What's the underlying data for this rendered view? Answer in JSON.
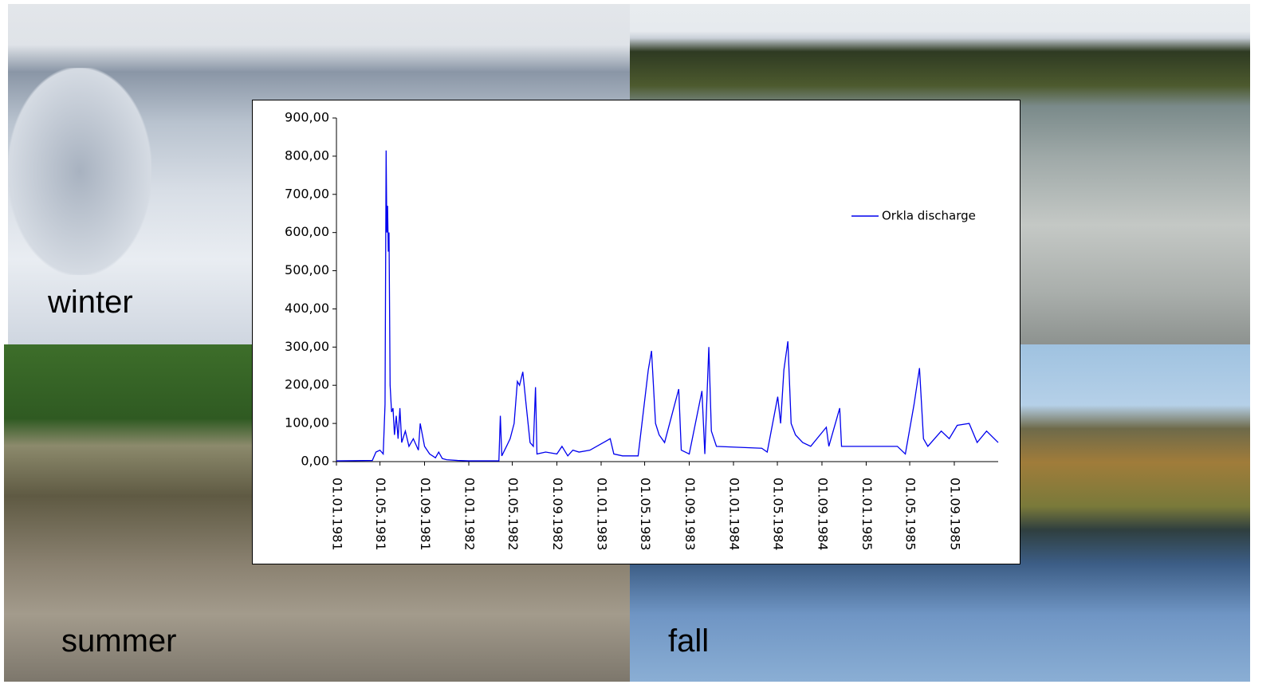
{
  "photos": [
    {
      "label": "winter"
    },
    {
      "label": "summer"
    },
    {
      "label": "fall"
    }
  ],
  "chart_data": {
    "type": "line",
    "x": [
      "01.01.1981",
      "10.04.1981",
      "20.04.1981",
      "01.05.1981",
      "10.05.1981",
      "15.05.1981",
      "18.05.1981",
      "20.05.1981",
      "22.05.1981",
      "24.05.1981",
      "26.05.1981",
      "29.05.1981",
      "02.06.1981",
      "06.06.1981",
      "10.06.1981",
      "15.06.1981",
      "20.06.1981",
      "25.06.1981",
      "30.06.1981",
      "10.07.1981",
      "20.07.1981",
      "01.08.1981",
      "15.08.1981",
      "20.08.1981",
      "01.09.1981",
      "15.09.1981",
      "01.10.1981",
      "10.10.1981",
      "20.10.1981",
      "01.11.1981",
      "01.12.1981",
      "01.01.1982",
      "25.03.1982",
      "29.03.1982",
      "02.04.1982",
      "15.04.1982",
      "25.04.1982",
      "06.05.1982",
      "15.05.1982",
      "21.05.1982",
      "30.05.1982",
      "08.06.1982",
      "19.06.1982",
      "28.06.1982",
      "04.07.1982",
      "08.07.1982",
      "01.08.1982",
      "01.09.1982",
      "15.09.1982",
      "01.10.1982",
      "15.10.1982",
      "01.11.1982",
      "01.12.1982",
      "26.01.1983",
      "05.02.1983",
      "01.03.1983",
      "13.04.1983",
      "11.05.1983",
      "20.05.1983",
      "31.05.1983",
      "10.06.1983",
      "25.06.1983",
      "03.08.1983",
      "10.08.1983",
      "01.09.1983",
      "06.10.1983",
      "14.10.1983",
      "25.10.1983",
      "01.11.1983",
      "15.11.1983",
      "19.03.1984",
      "03.04.1984",
      "02.05.1984",
      "10.05.1984",
      "19.05.1984",
      "30.05.1984",
      "08.06.1984",
      "20.06.1984",
      "10.07.1984",
      "01.08.1984",
      "13.09.1984",
      "20.09.1984",
      "20.10.1984",
      "25.10.1984",
      "28.03.1985",
      "19.04.1985",
      "13.05.1985",
      "28.05.1985",
      "08.06.1985",
      "20.06.1985",
      "27.07.1985",
      "18.08.1985",
      "09.09.1985",
      "12.10.1985",
      "03.11.1985",
      "29.11.1985",
      "31.12.1985"
    ],
    "series": [
      {
        "name": "Orkla discharge",
        "color": "#0000ee",
        "values": [
          2,
          3,
          25,
          30,
          20,
          150,
          815,
          600,
          670,
          550,
          600,
          200,
          130,
          140,
          70,
          120,
          60,
          140,
          50,
          80,
          40,
          60,
          30,
          100,
          40,
          20,
          10,
          25,
          8,
          5,
          3,
          2,
          2,
          120,
          15,
          40,
          60,
          100,
          210,
          200,
          235,
          150,
          50,
          40,
          195,
          20,
          25,
          20,
          40,
          15,
          30,
          25,
          30,
          60,
          20,
          15,
          15,
          240,
          290,
          100,
          70,
          50,
          190,
          30,
          20,
          185,
          20,
          300,
          80,
          40,
          35,
          25,
          170,
          100,
          240,
          315,
          100,
          70,
          50,
          40,
          90,
          40,
          140,
          40,
          40,
          20,
          150,
          245,
          60,
          40,
          80,
          60,
          95,
          100,
          50,
          80,
          50
        ]
      }
    ],
    "xlim": [
      "01.01.1981",
      "31.12.1985"
    ],
    "xticks": [
      "01.01.1981",
      "01.05.1981",
      "01.09.1981",
      "01.01.1982",
      "01.05.1982",
      "01.09.1982",
      "01.01.1983",
      "01.05.1983",
      "01.09.1983",
      "01.01.1984",
      "01.05.1984",
      "01.09.1984",
      "01.01.1985",
      "01.05.1985",
      "01.09.1985"
    ],
    "ylim": [
      0,
      900
    ],
    "yticks": [
      {
        "value": 0,
        "label": "0,00"
      },
      {
        "value": 100,
        "label": "100,00"
      },
      {
        "value": 200,
        "label": "200,00"
      },
      {
        "value": 300,
        "label": "300,00"
      },
      {
        "value": 400,
        "label": "400,00"
      },
      {
        "value": 500,
        "label": "500,00"
      },
      {
        "value": 600,
        "label": "600,00"
      },
      {
        "value": 700,
        "label": "700,00"
      },
      {
        "value": 800,
        "label": "800,00"
      },
      {
        "value": 900,
        "label": "900,00"
      }
    ],
    "legend": "right",
    "grid": false
  }
}
